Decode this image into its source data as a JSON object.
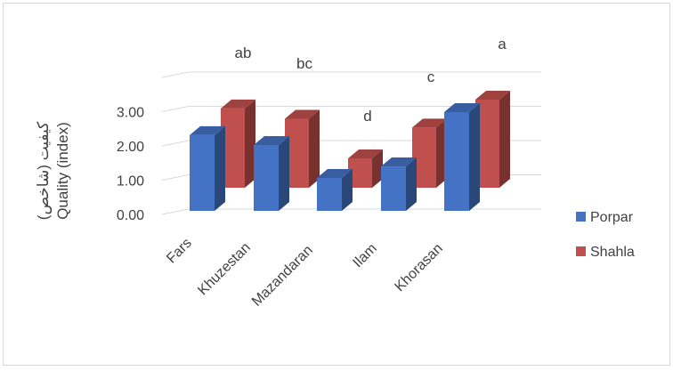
{
  "chart_data": {
    "type": "bar",
    "title": "",
    "ylabel_fa": "کیفیت (شاخص)",
    "ylabel_en": "Quality (index)",
    "xlabel": "",
    "categories": [
      "Fars",
      "Khuzestan",
      "Mazandaran",
      "Ilam",
      "Khorasan"
    ],
    "ylim": [
      0,
      3
    ],
    "yticks": [
      "0.00",
      "1.00",
      "2.00",
      "3.00"
    ],
    "series": [
      {
        "name": "Porpar",
        "values": [
          2.3,
          2.0,
          1.0,
          1.35,
          3.0
        ],
        "color": "#4472c4"
      },
      {
        "name": "Shahla",
        "values": [
          2.7,
          2.35,
          1.0,
          2.05,
          3.0
        ],
        "color": "#c0504d"
      }
    ],
    "significance_letters": [
      "ab",
      "bc",
      "d",
      "c",
      "a"
    ],
    "grid": true,
    "legend_position": "right",
    "view": "3d-column"
  }
}
